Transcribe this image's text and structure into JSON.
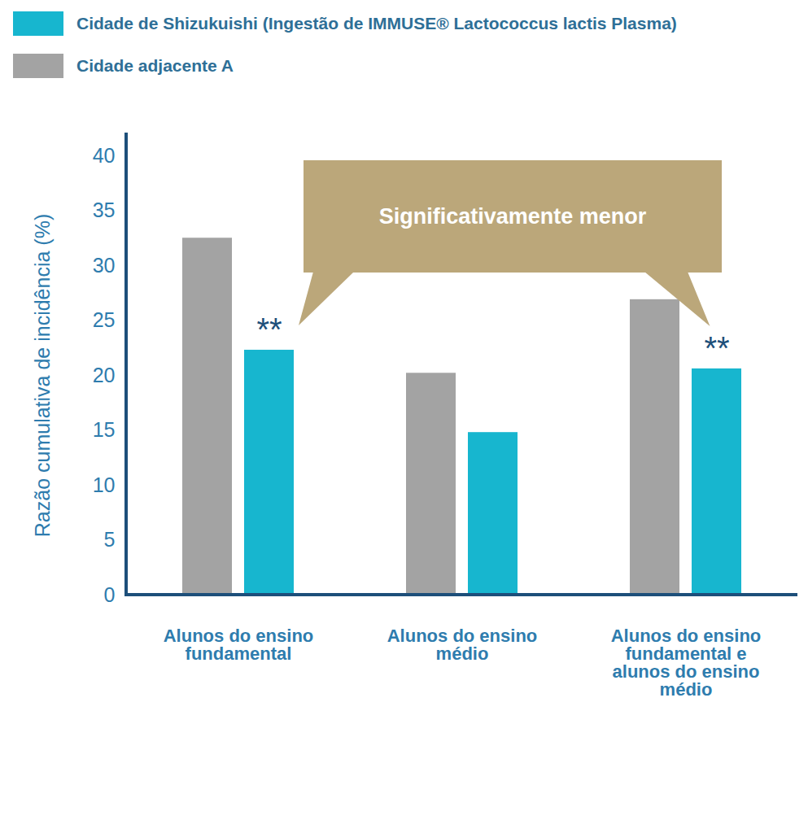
{
  "chart_data": {
    "type": "bar",
    "categories": [
      "Alunos do ensino fundamental",
      "Alunos do ensino médio",
      "Alunos do ensino fundamental e alunos do ensino médio"
    ],
    "series": [
      {
        "name": "Cidade de Shizukuishi (Ingestão de IMMUSE® Lactococcus lactis Plasma)",
        "color": "#17b6cf",
        "values": [
          22.3,
          14.8,
          20.6
        ],
        "significance": [
          "**",
          null,
          "**"
        ]
      },
      {
        "name": "Cidade adjacente A",
        "color": "#a3a3a3",
        "values": [
          32.5,
          20.2,
          26.9
        ]
      }
    ],
    "y_label": "Razão cumulativa de incidência (%)",
    "ylim": [
      0,
      40
    ],
    "yticks": [
      0,
      5,
      10,
      15,
      20,
      25,
      30,
      35,
      40
    ],
    "grid": false,
    "legend": "top",
    "annotations": [
      {
        "text": "Significativamente menor"
      }
    ]
  }
}
